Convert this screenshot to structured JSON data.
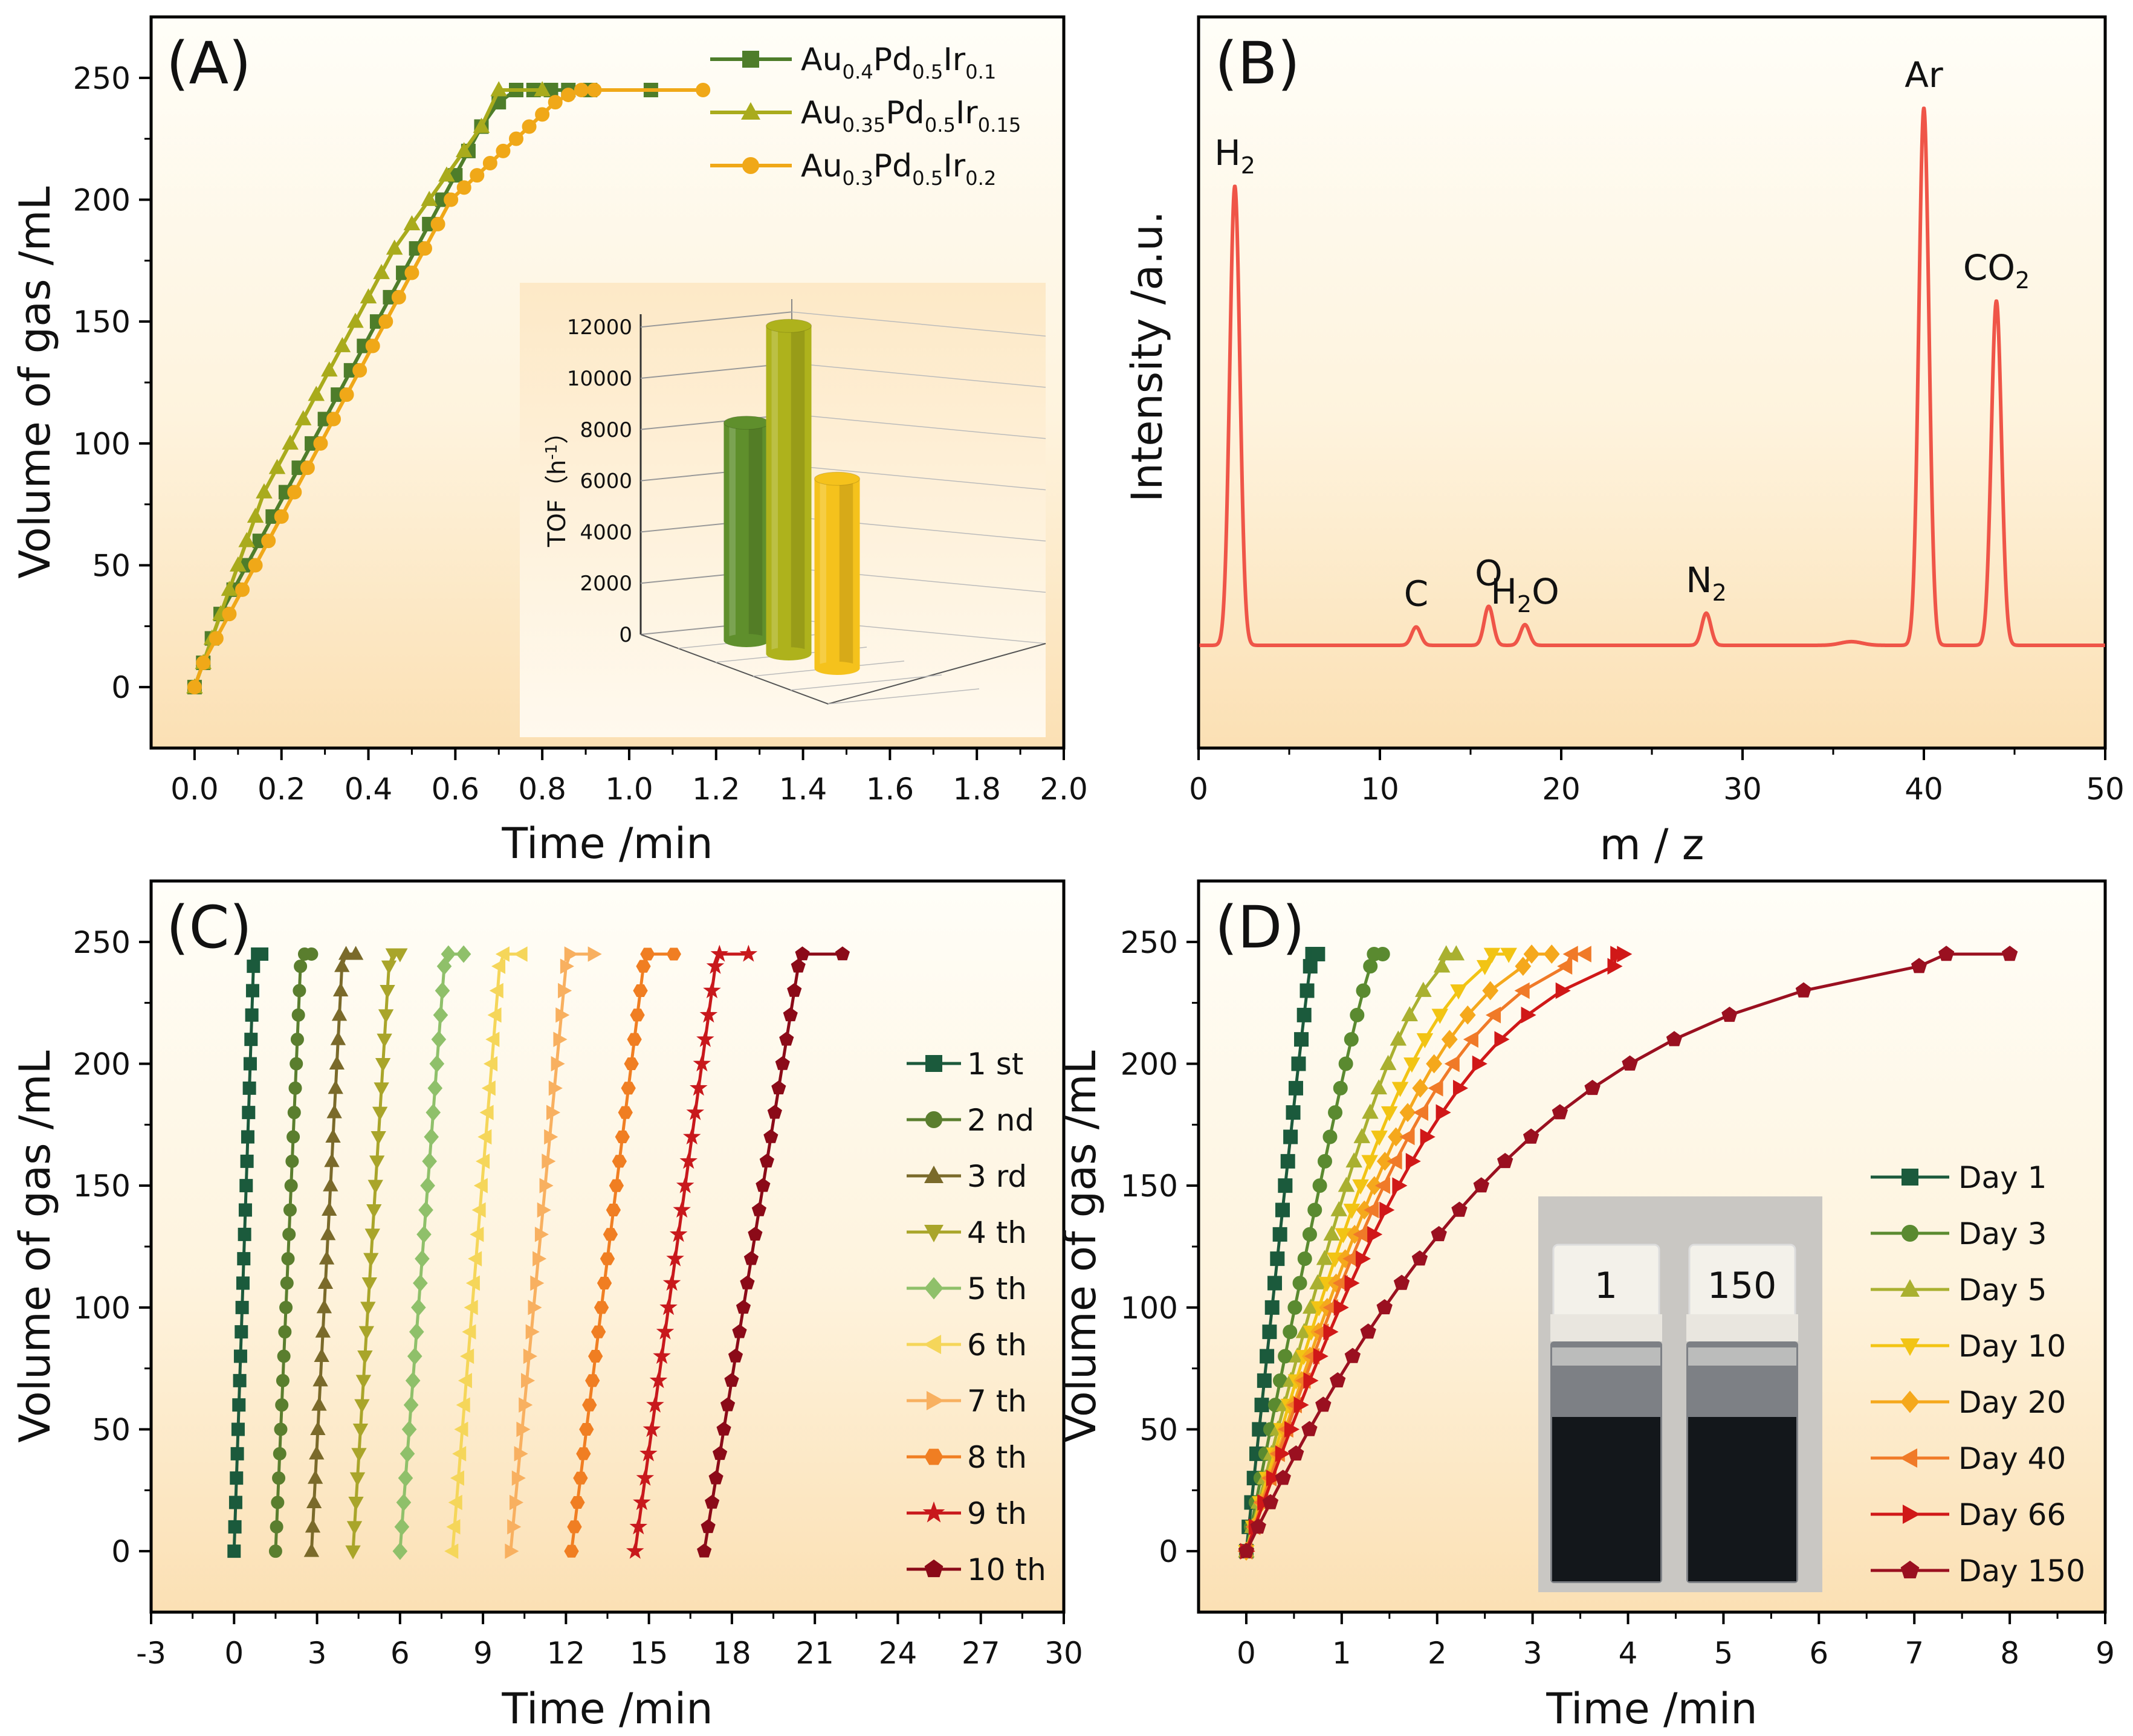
{
  "chart_data": [
    {
      "id": "A",
      "type": "line",
      "panel_label": "(A)",
      "xlabel": "Time /min",
      "ylabel": "Volume of gas /mL",
      "xlim": [
        -0.1,
        2.0
      ],
      "ylim": [
        -25,
        275
      ],
      "xticks": [
        "0.0",
        "0.2",
        "0.4",
        "0.6",
        "0.8",
        "1.0",
        "1.2",
        "1.4",
        "1.6",
        "1.8",
        "2.0"
      ],
      "xtick_values": [
        0,
        0.2,
        0.4,
        0.6,
        0.8,
        1.0,
        1.2,
        1.4,
        1.6,
        1.8,
        2.0
      ],
      "yticks": [
        "0",
        "50",
        "100",
        "150",
        "200",
        "250"
      ],
      "ytick_values": [
        0,
        50,
        100,
        150,
        200,
        250
      ],
      "legend_position": "top-right",
      "series": [
        {
          "name": "Au0.4Pd0.5Ir0.1",
          "color": "#4e7d2a",
          "marker": "square",
          "x": [
            0,
            0.02,
            0.04,
            0.06,
            0.09,
            0.12,
            0.15,
            0.18,
            0.21,
            0.24,
            0.27,
            0.3,
            0.33,
            0.36,
            0.39,
            0.42,
            0.45,
            0.48,
            0.51,
            0.54,
            0.57,
            0.6,
            0.63,
            0.66,
            0.7,
            0.74,
            0.78,
            0.82,
            0.86,
            0.91,
            1.05
          ],
          "y": [
            0,
            10,
            20,
            30,
            40,
            50,
            60,
            70,
            80,
            90,
            100,
            110,
            120,
            130,
            140,
            150,
            160,
            170,
            180,
            190,
            200,
            210,
            220,
            230,
            240,
            245,
            245,
            245,
            245,
            245,
            245
          ]
        },
        {
          "name": "Au0.35Pd0.5Ir0.15",
          "color": "#a9ab1c",
          "marker": "triangle",
          "x": [
            0,
            0.02,
            0.04,
            0.06,
            0.08,
            0.1,
            0.12,
            0.14,
            0.16,
            0.19,
            0.22,
            0.25,
            0.28,
            0.31,
            0.34,
            0.37,
            0.4,
            0.43,
            0.46,
            0.5,
            0.54,
            0.58,
            0.62,
            0.66,
            0.7,
            0.8
          ],
          "y": [
            0,
            10,
            20,
            30,
            40,
            50,
            60,
            70,
            80,
            90,
            100,
            110,
            120,
            130,
            140,
            150,
            160,
            170,
            180,
            190,
            200,
            210,
            220,
            230,
            245,
            245
          ]
        },
        {
          "name": "Au0.3Pd0.5Ir0.2",
          "color": "#f0a818",
          "marker": "circle",
          "x": [
            0,
            0.02,
            0.05,
            0.08,
            0.11,
            0.14,
            0.17,
            0.2,
            0.23,
            0.26,
            0.29,
            0.32,
            0.35,
            0.38,
            0.41,
            0.44,
            0.47,
            0.5,
            0.53,
            0.56,
            0.59,
            0.62,
            0.65,
            0.68,
            0.71,
            0.74,
            0.77,
            0.8,
            0.83,
            0.86,
            0.89,
            0.92,
            1.17
          ],
          "y": [
            0,
            10,
            20,
            30,
            40,
            50,
            60,
            70,
            80,
            90,
            100,
            110,
            120,
            130,
            140,
            150,
            160,
            170,
            180,
            190,
            200,
            205,
            210,
            215,
            220,
            225,
            230,
            235,
            240,
            243,
            245,
            245,
            245
          ]
        }
      ],
      "inset": {
        "type": "bar",
        "ylabel": "TOF（h",
        "ylabel_sup": "-1",
        "ylabel_end": "）",
        "yticks": [
          "0",
          "2000",
          "4000",
          "6000",
          "8000",
          "10000",
          "12000"
        ],
        "ytick_values": [
          0,
          2000,
          4000,
          6000,
          8000,
          10000,
          12000
        ],
        "ylim": [
          0,
          12500
        ],
        "values": [
          8500,
          12800,
          7400
        ],
        "colors": [
          "#5f8f2c",
          "#aeb21c",
          "#f5c21c"
        ]
      }
    },
    {
      "id": "B",
      "type": "line",
      "panel_label": "(B)",
      "xlabel": "m / z",
      "ylabel": "Intensity /a.u.",
      "xlim": [
        0,
        50
      ],
      "xticks": [
        "0",
        "10",
        "20",
        "30",
        "40",
        "50"
      ],
      "xtick_values": [
        0,
        10,
        20,
        30,
        40,
        50
      ],
      "color": "#ef5548",
      "baseline": 0.06,
      "peaks": [
        {
          "x": 2.0,
          "h": 1.0,
          "w": 0.28,
          "label": "H",
          "sub": "2"
        },
        {
          "x": 12.0,
          "h": 0.04,
          "w": 0.25,
          "label": "C",
          "sub": ""
        },
        {
          "x": 16.0,
          "h": 0.085,
          "w": 0.25,
          "label": "O",
          "sub": ""
        },
        {
          "x": 18.0,
          "h": 0.045,
          "w": 0.25,
          "label": "H",
          "sub": "2",
          "tail": "O"
        },
        {
          "x": 28.0,
          "h": 0.07,
          "w": 0.25,
          "label": "N",
          "sub": "2"
        },
        {
          "x": 36.0,
          "h": 0.008,
          "w": 0.6,
          "label": "",
          "sub": ""
        },
        {
          "x": 40.0,
          "h": 1.17,
          "w": 0.28,
          "label": "Ar",
          "sub": ""
        },
        {
          "x": 44.0,
          "h": 0.75,
          "w": 0.28,
          "label": "CO",
          "sub": "2"
        }
      ]
    },
    {
      "id": "C",
      "type": "line",
      "panel_label": "(C)",
      "xlabel": "Time /min",
      "ylabel": "Volume of gas /mL",
      "xlim": [
        -3,
        30
      ],
      "ylim": [
        -25,
        275
      ],
      "xticks": [
        "-3",
        "0",
        "3",
        "6",
        "9",
        "12",
        "15",
        "18",
        "21",
        "24",
        "27",
        "30"
      ],
      "xtick_values": [
        -3,
        0,
        3,
        6,
        9,
        12,
        15,
        18,
        21,
        24,
        27,
        30
      ],
      "yticks": [
        "0",
        "50",
        "100",
        "150",
        "200",
        "250"
      ],
      "ytick_values": [
        0,
        50,
        100,
        150,
        200,
        250
      ],
      "legend_position": "right",
      "series": [
        {
          "name": "1 st",
          "color": "#1b5a3c",
          "marker": "square",
          "x0": 0.0,
          "x_top": 0.7,
          "x_end": 1.0
        },
        {
          "name": "2 nd",
          "color": "#5a7e2e",
          "marker": "circle",
          "x0": 1.5,
          "x_top": 2.4,
          "x_end": 2.8
        },
        {
          "name": "3 rd",
          "color": "#7a6a2a",
          "marker": "triangle",
          "x0": 2.8,
          "x_top": 3.9,
          "x_end": 4.4
        },
        {
          "name": "4 th",
          "color": "#a9a52a",
          "marker": "triangle-down",
          "x0": 4.3,
          "x_top": 5.6,
          "x_end": 6.0
        },
        {
          "name": "5 th",
          "color": "#8fc06a",
          "marker": "diamond",
          "x0": 6.0,
          "x_top": 7.6,
          "x_end": 8.3
        },
        {
          "name": "6 th",
          "color": "#f5d65a",
          "marker": "triangle-left",
          "x0": 7.9,
          "x_top": 9.6,
          "x_end": 10.4
        },
        {
          "name": "7 th",
          "color": "#f8b060",
          "marker": "triangle-right",
          "x0": 10.0,
          "x_top": 12.0,
          "x_end": 13.0
        },
        {
          "name": "8 th",
          "color": "#f07e22",
          "marker": "hexagon",
          "x0": 12.2,
          "x_top": 14.8,
          "x_end": 15.9
        },
        {
          "name": "9 th",
          "color": "#c8181c",
          "marker": "star",
          "x0": 14.5,
          "x_top": 17.4,
          "x_end": 18.6
        },
        {
          "name": "10 th",
          "color": "#8b0a18",
          "marker": "pentagon",
          "x0": 17.0,
          "x_top": 20.4,
          "x_end": 22.0
        }
      ]
    },
    {
      "id": "D",
      "type": "line",
      "panel_label": "(D)",
      "xlabel": "Time /min",
      "ylabel": "Volume of gas /mL",
      "xlim": [
        -0.5,
        9
      ],
      "ylim": [
        -25,
        275
      ],
      "xticks": [
        "0",
        "1",
        "2",
        "3",
        "4",
        "5",
        "6",
        "7",
        "8",
        "9"
      ],
      "xtick_values": [
        0,
        1,
        2,
        3,
        4,
        5,
        6,
        7,
        8,
        9
      ],
      "yticks": [
        "0",
        "50",
        "100",
        "150",
        "200",
        "250"
      ],
      "yticks_values": [
        0,
        50,
        100,
        150,
        200,
        250
      ],
      "legend_position": "bottom-right",
      "series": [
        {
          "name": "Day 1",
          "color": "#1b5a3c",
          "marker": "square",
          "t_end": 0.67,
          "x_end": 0.75,
          "curv": 0.05
        },
        {
          "name": "Day 3",
          "color": "#5a8a30",
          "marker": "circle",
          "t_end": 1.3,
          "x_end": 1.43,
          "curv": 0.1
        },
        {
          "name": "Day 5",
          "color": "#a9b030",
          "marker": "triangle",
          "t_end": 2.05,
          "x_end": 2.2,
          "curv": 0.35
        },
        {
          "name": "Day 10",
          "color": "#f2c414",
          "marker": "triangle-down",
          "t_end": 2.5,
          "x_end": 2.75,
          "curv": 0.45
        },
        {
          "name": "Day 20",
          "color": "#f5a81c",
          "marker": "diamond",
          "t_end": 2.9,
          "x_end": 3.2,
          "curv": 0.5
        },
        {
          "name": "Day 40",
          "color": "#f07a28",
          "marker": "triangle-left",
          "t_end": 3.35,
          "x_end": 3.55,
          "curv": 0.6
        },
        {
          "name": "Day 66",
          "color": "#d01818",
          "marker": "triangle-right",
          "t_end": 3.85,
          "x_end": 3.95,
          "curv": 0.65
        },
        {
          "name": "Day 150",
          "color": "#9a1020",
          "marker": "pentagon",
          "t_end": 7.05,
          "x_end": 8.0,
          "curv": 0.85
        }
      ],
      "inset_labels": [
        "1",
        "150"
      ]
    }
  ]
}
